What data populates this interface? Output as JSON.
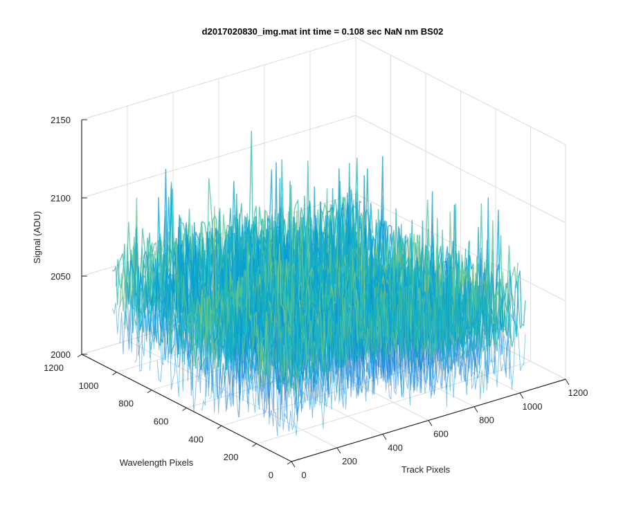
{
  "chart_data": {
    "type": "surface",
    "title": "d2017020830_img.mat int time = 0.108 sec  NaN nm BS02",
    "xlabel": "Track Pixels",
    "ylabel": "Wavelength Pixels",
    "zlabel": "Signal (ADU)",
    "xlim": [
      0,
      1200
    ],
    "ylim": [
      0,
      1200
    ],
    "zlim": [
      2000,
      2150
    ],
    "x_ticks": [
      "0",
      "200",
      "400",
      "600",
      "800",
      "1000",
      "1200"
    ],
    "y_ticks": [
      "0",
      "200",
      "400",
      "600",
      "800",
      "1000",
      "1200"
    ],
    "z_ticks": [
      "2000",
      "2050",
      "2100",
      "2150"
    ],
    "grid": true,
    "colormap": "parula",
    "surface_summary": {
      "x_extent": [
        1,
        1024
      ],
      "y_extent": [
        1,
        1024
      ],
      "typical_signal_range": [
        2030,
        2090
      ],
      "peak_signal": 2150,
      "trough_signal": 2025
    }
  }
}
